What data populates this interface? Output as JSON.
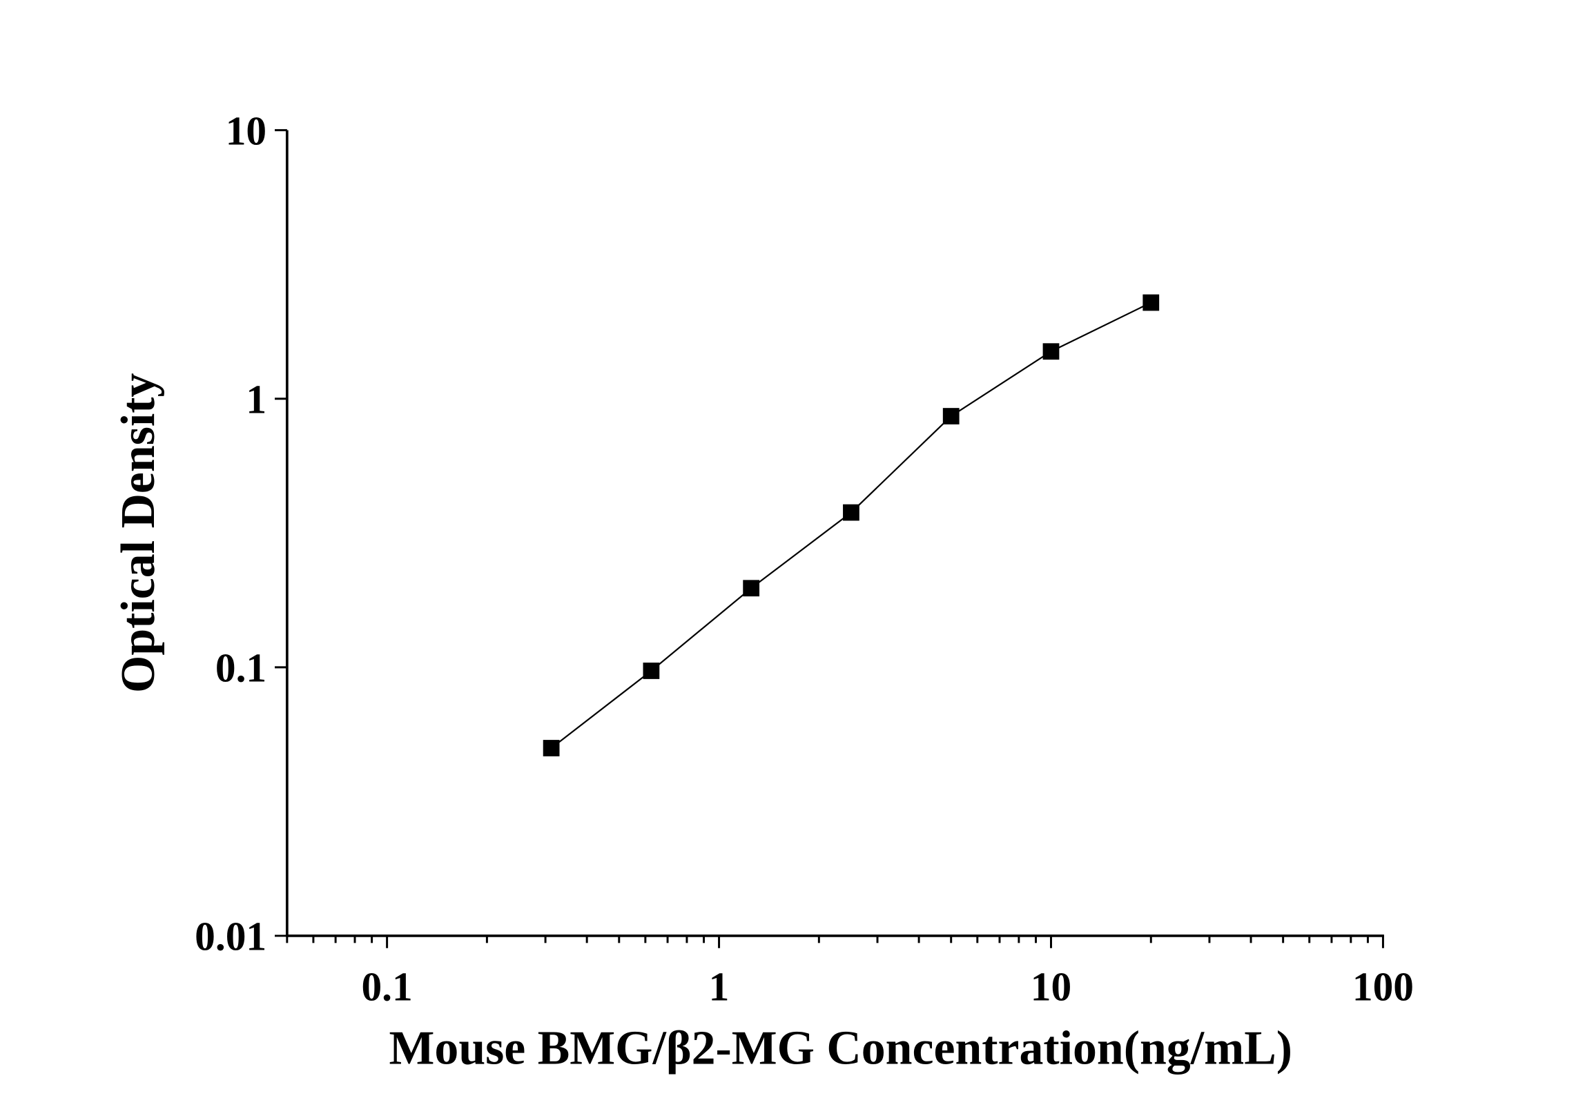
{
  "chart_data": {
    "type": "line",
    "title": "",
    "xlabel": "Mouse BMG/β2-MG Concentration(ng/mL)",
    "ylabel": "Optical Density",
    "x_scale": "log",
    "y_scale": "log",
    "xlim": [
      0.05,
      100
    ],
    "ylim": [
      0.01,
      10
    ],
    "x_ticks": [
      "0.1",
      "1",
      "10",
      "100"
    ],
    "y_ticks": [
      "0.01",
      "0.1",
      "1",
      "10"
    ],
    "grid": false,
    "marker": "square",
    "series": [
      {
        "x": [
          0.3125,
          0.625,
          1.25,
          2.5,
          5,
          10,
          20
        ],
        "y": [
          0.05,
          0.097,
          0.197,
          0.377,
          0.861,
          1.5,
          2.28
        ]
      }
    ],
    "color": "#000000"
  }
}
